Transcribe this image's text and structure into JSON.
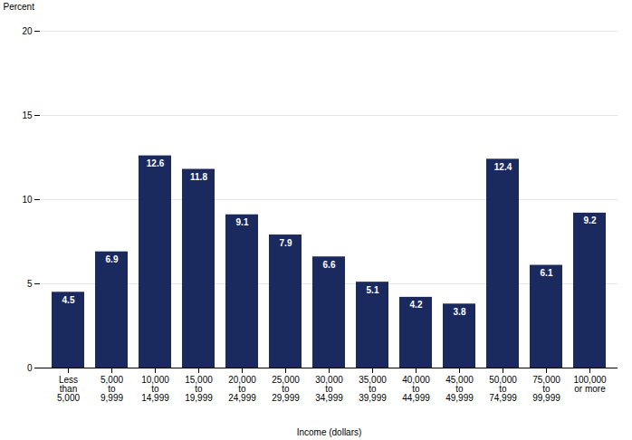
{
  "chart_data": {
    "type": "bar",
    "categories": [
      "Less\nthan\n5,000",
      "5,000\nto\n9,999",
      "10,000\nto\n14,999",
      "15,000\nto\n19,999",
      "20,000\nto\n24,999",
      "25,000\nto\n29,999",
      "30,000\nto\n34,999",
      "35,000\nto\n39,999",
      "40,000\nto\n44,999",
      "45,000\nto\n49,999",
      "50,000\nto\n74,999",
      "75,000\nto\n99,999",
      "100,000\nor more"
    ],
    "values": [
      4.5,
      6.9,
      12.6,
      11.8,
      9.1,
      7.9,
      6.6,
      5.1,
      4.2,
      3.8,
      12.4,
      6.1,
      9.2
    ],
    "color": "#1b2a5e",
    "xlabel": "Income (dollars)",
    "ylabel": "Percent",
    "ylim": [
      0,
      20
    ],
    "yticks": [
      0,
      5,
      10,
      15,
      20
    ],
    "grid": true,
    "data_labels": true
  }
}
